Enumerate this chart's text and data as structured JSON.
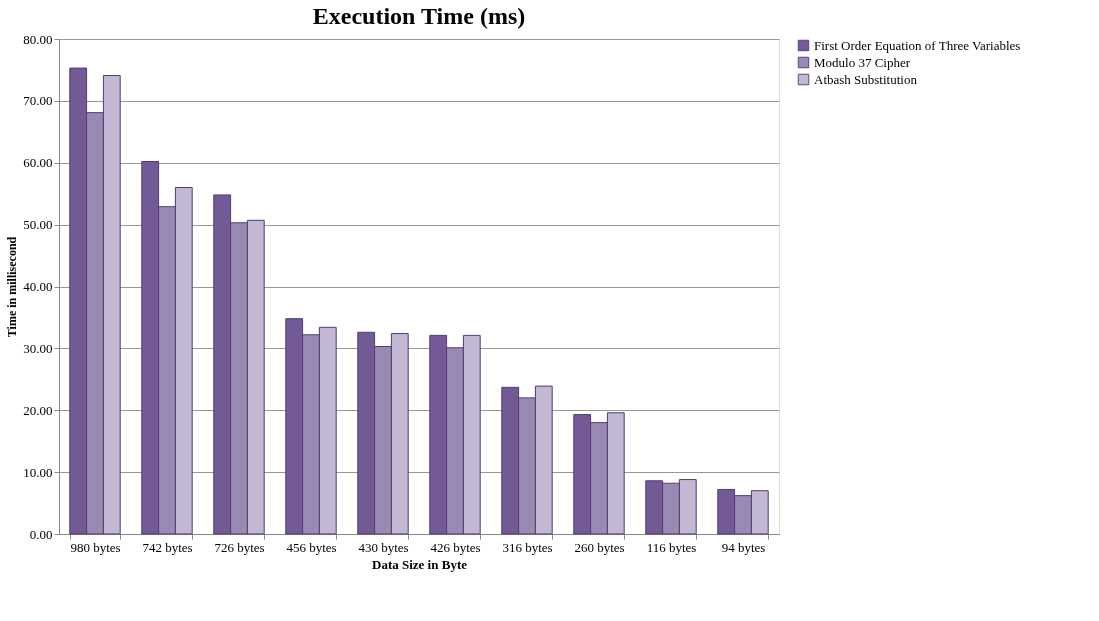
{
  "chart_data": {
    "type": "bar",
    "title": "Execution Time (ms)",
    "xlabel": "Data Size in Byte",
    "ylabel": "Time in millisecond",
    "categories": [
      "980 bytes",
      "742 bytes",
      "726 bytes",
      "456 bytes",
      "430 bytes",
      "426 bytes",
      "316 bytes",
      "260 bytes",
      "116 bytes",
      "94 bytes"
    ],
    "series": [
      {
        "name": "First Order Equation of Three Variables",
        "color": "#735a96",
        "values": [
          75.3,
          60.2,
          54.8,
          34.8,
          32.6,
          32.1,
          23.7,
          19.3,
          8.6,
          7.2
        ]
      },
      {
        "name": "Modulo 37 Cipher",
        "color": "#9b89b5",
        "values": [
          68.1,
          52.9,
          50.3,
          32.2,
          30.3,
          30.1,
          22.0,
          18.0,
          8.2,
          6.2
        ]
      },
      {
        "name": "Atbash Substitution",
        "color": "#c3b8d3",
        "values": [
          74.1,
          56.0,
          50.7,
          33.4,
          32.4,
          32.1,
          23.9,
          19.6,
          8.8,
          7.0
        ]
      }
    ],
    "ylim": [
      0,
      80
    ],
    "yticks": [
      {
        "value": 0,
        "label": "0.00"
      },
      {
        "value": 10,
        "label": "10.00"
      },
      {
        "value": 20,
        "label": "20.00"
      },
      {
        "value": 30,
        "label": "30.00"
      },
      {
        "value": 40,
        "label": "40.00"
      },
      {
        "value": 50,
        "label": "50.00"
      },
      {
        "value": 60,
        "label": "60.00"
      },
      {
        "value": 70,
        "label": "70.00"
      },
      {
        "value": 80,
        "label": "80.00"
      }
    ],
    "grid": "y",
    "legend": "right"
  }
}
